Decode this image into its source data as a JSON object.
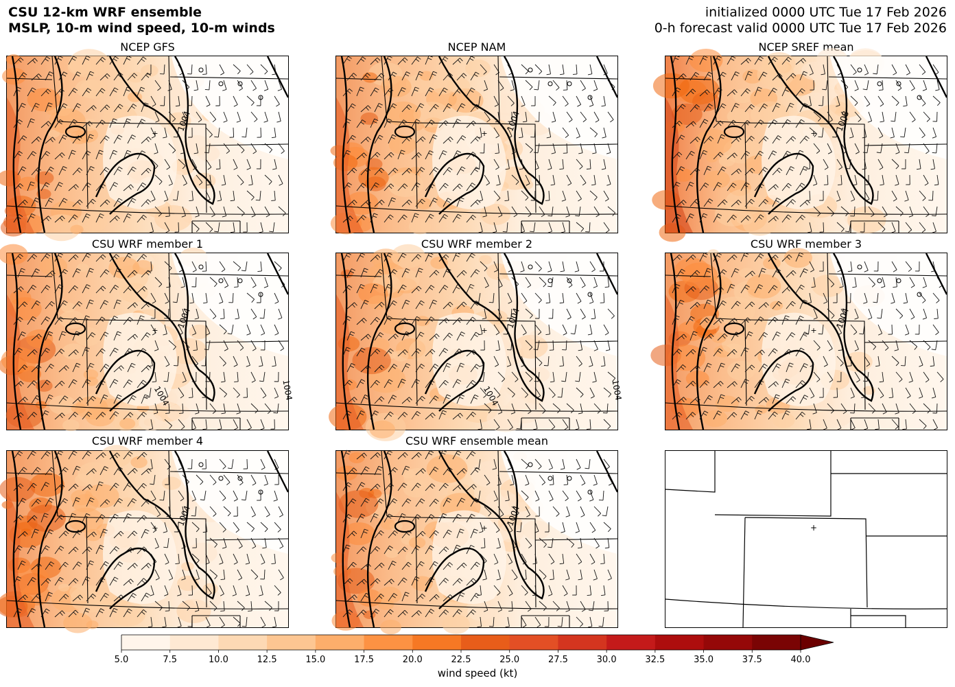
{
  "header": {
    "title_line1": "CSU 12-km WRF ensemble",
    "title_line2": "MSLP, 10-m wind speed, 10-m winds",
    "init_line": "initialized 0000 UTC Tue 17 Feb 2026",
    "valid_line": "0-h forecast valid 0000 UTC Tue 17 Feb 2026"
  },
  "panels": [
    {
      "title": "NCEP GFS",
      "isobars": [
        "1004"
      ],
      "kind": "gfs"
    },
    {
      "title": "NCEP NAM",
      "isobars": [
        "1004"
      ],
      "kind": "nam"
    },
    {
      "title": "NCEP SREF mean",
      "isobars": [
        "1008"
      ],
      "kind": "sref"
    },
    {
      "title": "CSU WRF member 1",
      "isobars": [
        "1004",
        "1004",
        "1004"
      ],
      "kind": "m"
    },
    {
      "title": "CSU WRF member 2",
      "isobars": [
        "1004",
        "1004",
        "1004"
      ],
      "kind": "m"
    },
    {
      "title": "CSU WRF member 3",
      "isobars": [
        "1004"
      ],
      "kind": "m3"
    },
    {
      "title": "CSU WRF member 4",
      "isobars": [
        "1004"
      ],
      "kind": "m"
    },
    {
      "title": "CSU WRF ensemble mean",
      "isobars": [
        "1004"
      ],
      "kind": "m"
    },
    {
      "title": "",
      "isobars": [],
      "kind": "blank"
    }
  ],
  "colorbar": {
    "label": "wind speed (kt)",
    "ticks": [
      "5.0",
      "7.5",
      "10.0",
      "12.5",
      "15.0",
      "17.5",
      "20.0",
      "22.5",
      "25.0",
      "27.5",
      "30.0",
      "32.5",
      "35.0",
      "37.5",
      "40.0"
    ],
    "colors": [
      "#fff5eb",
      "#fee9d3",
      "#fdd9b4",
      "#fdc692",
      "#fdae6b",
      "#fd9243",
      "#f67824",
      "#e85d1a",
      "#e34f25",
      "#d4351f",
      "#c41a1a",
      "#ad0d0d",
      "#950808",
      "#7a0404"
    ],
    "extend": "max"
  }
}
